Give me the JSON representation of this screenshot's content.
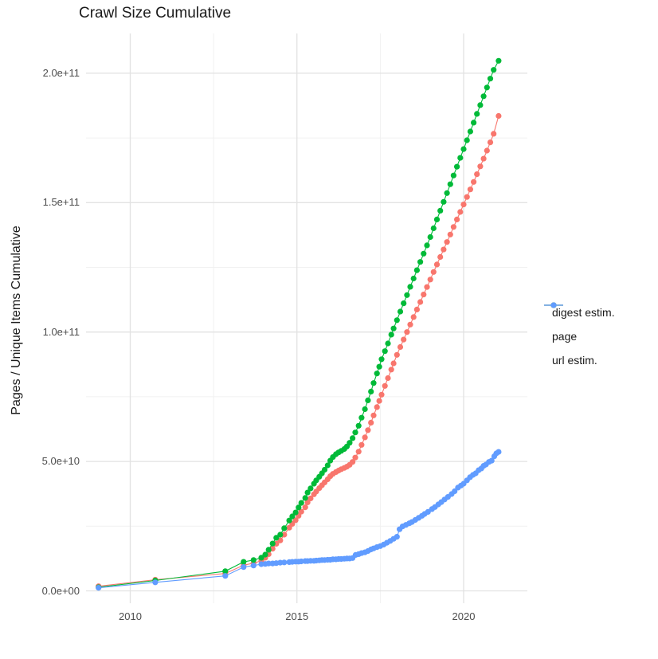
{
  "window": {
    "background_color": "#FFFFFF"
  },
  "chart_data": {
    "type": "scatter",
    "title": "Crawl Size Cumulative",
    "xlabel": "",
    "ylabel": "Pages / Unique Items Cumulative",
    "grid": true,
    "legend_position": "right",
    "value_unit": "items (point values stored in billions, i.e. value x 1e9)",
    "x_axis": {
      "ticks": [
        {
          "label": "2010",
          "value": 2010
        },
        {
          "label": "2015",
          "value": 2015
        },
        {
          "label": "2020",
          "value": 2020
        }
      ],
      "minor_ticks": [
        2012.5,
        2017.5
      ],
      "range": [
        2008.67,
        2021.82
      ]
    },
    "y_axis": {
      "ticks": [
        {
          "label": "0.0e+00",
          "value_billions": 0
        },
        {
          "label": "5.0e+10",
          "value_billions": 50
        },
        {
          "label": "1.0e+11",
          "value_billions": 100
        },
        {
          "label": "1.5e+11",
          "value_billions": 150
        },
        {
          "label": "2.0e+11",
          "value_billions": 200
        }
      ],
      "minor_ticks_billions": [
        25,
        75,
        125,
        175
      ],
      "range_billions": [
        -4.5,
        215.5
      ]
    },
    "style": {
      "grid_major_color": "#E2E2E2",
      "grid_minor_color": "#F1F1F1",
      "tick_label_color": "#4D4D4D",
      "text_color": "#1A1A1A",
      "point_radius": 3.6,
      "line_width": 1.1
    },
    "series": [
      {
        "name": "digest estim.",
        "color": "#F8766D",
        "points_year_billions": [
          [
            2009.05,
            1.8
          ],
          [
            2010.75,
            4.3
          ],
          [
            2012.85,
            6.7
          ],
          [
            2013.4,
            9.9
          ],
          [
            2013.7,
            10.7
          ],
          [
            2013.93,
            11.6
          ],
          [
            2014.05,
            12.8
          ],
          [
            2014.15,
            14.2
          ],
          [
            2014.27,
            16.3
          ],
          [
            2014.38,
            18.2
          ],
          [
            2014.5,
            19.5
          ],
          [
            2014.62,
            21.7
          ],
          [
            2014.77,
            24.4
          ],
          [
            2014.86,
            25.9
          ],
          [
            2014.96,
            27.3
          ],
          [
            2015.05,
            29.0
          ],
          [
            2015.13,
            30.6
          ],
          [
            2015.25,
            32.3
          ],
          [
            2015.32,
            34.2
          ],
          [
            2015.41,
            35.7
          ],
          [
            2015.51,
            37.3
          ],
          [
            2015.58,
            38.4
          ],
          [
            2015.67,
            39.7
          ],
          [
            2015.75,
            40.8
          ],
          [
            2015.83,
            41.9
          ],
          [
            2015.92,
            43.1
          ],
          [
            2016.0,
            44.3
          ],
          [
            2016.08,
            45.2
          ],
          [
            2016.17,
            45.9
          ],
          [
            2016.25,
            46.5
          ],
          [
            2016.33,
            47.0
          ],
          [
            2016.42,
            47.5
          ],
          [
            2016.5,
            48.0
          ],
          [
            2016.58,
            48.7
          ],
          [
            2016.67,
            49.8
          ],
          [
            2016.75,
            51.5
          ],
          [
            2016.85,
            53.8
          ],
          [
            2016.94,
            56.4
          ],
          [
            2017.04,
            59.3
          ],
          [
            2017.13,
            62.1
          ],
          [
            2017.22,
            65.0
          ],
          [
            2017.3,
            67.8
          ],
          [
            2017.4,
            71.0
          ],
          [
            2017.47,
            73.4
          ],
          [
            2017.54,
            75.8
          ],
          [
            2017.64,
            79.2
          ],
          [
            2017.73,
            82.2
          ],
          [
            2017.83,
            85.5
          ],
          [
            2017.9,
            87.9
          ],
          [
            2018.0,
            91.2
          ],
          [
            2018.1,
            94.2
          ],
          [
            2018.2,
            97.1
          ],
          [
            2018.3,
            100.0
          ],
          [
            2018.4,
            102.9
          ],
          [
            2018.5,
            105.8
          ],
          [
            2018.6,
            108.7
          ],
          [
            2018.7,
            111.6
          ],
          [
            2018.8,
            114.5
          ],
          [
            2018.9,
            117.4
          ],
          [
            2019.0,
            120.3
          ],
          [
            2019.1,
            123.2
          ],
          [
            2019.2,
            126.1
          ],
          [
            2019.3,
            129.0
          ],
          [
            2019.4,
            131.9
          ],
          [
            2019.5,
            134.8
          ],
          [
            2019.6,
            137.7
          ],
          [
            2019.7,
            140.6
          ],
          [
            2019.8,
            143.5
          ],
          [
            2019.9,
            146.4
          ],
          [
            2020.0,
            149.3
          ],
          [
            2020.1,
            152.2
          ],
          [
            2020.2,
            155.1
          ],
          [
            2020.3,
            158.0
          ],
          [
            2020.4,
            161.0
          ],
          [
            2020.5,
            164.0
          ],
          [
            2020.6,
            167.0
          ],
          [
            2020.7,
            170.1
          ],
          [
            2020.8,
            173.3
          ],
          [
            2020.9,
            176.6
          ],
          [
            2021.05,
            183.5
          ]
        ]
      },
      {
        "name": "page",
        "color": "#00BA38",
        "points_year_billions": [
          [
            2009.05,
            1.4
          ],
          [
            2010.75,
            4.0
          ],
          [
            2012.85,
            7.6
          ],
          [
            2013.4,
            11.2
          ],
          [
            2013.7,
            11.9
          ],
          [
            2013.93,
            12.8
          ],
          [
            2014.05,
            14.0
          ],
          [
            2014.15,
            15.9
          ],
          [
            2014.27,
            18.3
          ],
          [
            2014.38,
            20.5
          ],
          [
            2014.5,
            21.7
          ],
          [
            2014.62,
            24.2
          ],
          [
            2014.77,
            27.2
          ],
          [
            2014.86,
            28.8
          ],
          [
            2014.96,
            30.3
          ],
          [
            2015.05,
            32.2
          ],
          [
            2015.13,
            34.0
          ],
          [
            2015.25,
            35.9
          ],
          [
            2015.32,
            38.0
          ],
          [
            2015.41,
            39.6
          ],
          [
            2015.51,
            41.4
          ],
          [
            2015.58,
            42.7
          ],
          [
            2015.67,
            44.1
          ],
          [
            2015.75,
            45.4
          ],
          [
            2015.83,
            46.8
          ],
          [
            2015.92,
            48.5
          ],
          [
            2016.0,
            50.3
          ],
          [
            2016.08,
            51.7
          ],
          [
            2016.17,
            52.8
          ],
          [
            2016.25,
            53.5
          ],
          [
            2016.33,
            54.1
          ],
          [
            2016.42,
            54.8
          ],
          [
            2016.5,
            55.8
          ],
          [
            2016.58,
            57.2
          ],
          [
            2016.67,
            59.0
          ],
          [
            2016.75,
            61.2
          ],
          [
            2016.85,
            63.8
          ],
          [
            2016.94,
            66.9
          ],
          [
            2017.04,
            70.2
          ],
          [
            2017.13,
            73.6
          ],
          [
            2017.22,
            77.0
          ],
          [
            2017.3,
            80.3
          ],
          [
            2017.4,
            84.0
          ],
          [
            2017.47,
            86.6
          ],
          [
            2017.54,
            89.5
          ],
          [
            2017.64,
            92.6
          ],
          [
            2017.73,
            95.6
          ],
          [
            2017.83,
            99.0
          ],
          [
            2017.9,
            101.4
          ],
          [
            2018.0,
            104.6
          ],
          [
            2018.1,
            107.9
          ],
          [
            2018.2,
            111.1
          ],
          [
            2018.3,
            114.3
          ],
          [
            2018.4,
            117.5
          ],
          [
            2018.5,
            120.7
          ],
          [
            2018.6,
            123.9
          ],
          [
            2018.7,
            127.1
          ],
          [
            2018.8,
            130.3
          ],
          [
            2018.9,
            133.5
          ],
          [
            2019.0,
            136.7
          ],
          [
            2019.1,
            140.1
          ],
          [
            2019.2,
            143.5
          ],
          [
            2019.3,
            146.9
          ],
          [
            2019.4,
            150.3
          ],
          [
            2019.5,
            153.7
          ],
          [
            2019.6,
            157.1
          ],
          [
            2019.7,
            160.5
          ],
          [
            2019.8,
            163.9
          ],
          [
            2019.9,
            167.3
          ],
          [
            2020.0,
            170.7
          ],
          [
            2020.1,
            174.1
          ],
          [
            2020.2,
            177.5
          ],
          [
            2020.3,
            180.9
          ],
          [
            2020.4,
            184.3
          ],
          [
            2020.5,
            187.7
          ],
          [
            2020.6,
            191.1
          ],
          [
            2020.7,
            194.5
          ],
          [
            2020.8,
            197.9
          ],
          [
            2020.9,
            201.3
          ],
          [
            2021.05,
            204.8
          ]
        ]
      },
      {
        "name": "url estim.",
        "color": "#619CFF",
        "points_year_billions": [
          [
            2009.05,
            1.2
          ],
          [
            2010.75,
            3.3
          ],
          [
            2012.85,
            5.8
          ],
          [
            2013.4,
            9.2
          ],
          [
            2013.7,
            9.8
          ],
          [
            2013.93,
            10.3
          ],
          [
            2014.05,
            10.4
          ],
          [
            2014.15,
            10.6
          ],
          [
            2014.27,
            10.6
          ],
          [
            2014.38,
            10.7
          ],
          [
            2014.5,
            10.9
          ],
          [
            2014.62,
            11.0
          ],
          [
            2014.77,
            11.1
          ],
          [
            2014.86,
            11.2
          ],
          [
            2014.96,
            11.3
          ],
          [
            2015.05,
            11.3
          ],
          [
            2015.13,
            11.4
          ],
          [
            2015.25,
            11.5
          ],
          [
            2015.32,
            11.5
          ],
          [
            2015.41,
            11.6
          ],
          [
            2015.51,
            11.6
          ],
          [
            2015.58,
            11.7
          ],
          [
            2015.67,
            11.8
          ],
          [
            2015.75,
            11.9
          ],
          [
            2015.83,
            11.9
          ],
          [
            2015.92,
            12.0
          ],
          [
            2016.0,
            12.0
          ],
          [
            2016.08,
            12.2
          ],
          [
            2016.17,
            12.2
          ],
          [
            2016.25,
            12.3
          ],
          [
            2016.33,
            12.3
          ],
          [
            2016.42,
            12.4
          ],
          [
            2016.5,
            12.5
          ],
          [
            2016.58,
            12.5
          ],
          [
            2016.67,
            12.7
          ],
          [
            2016.76,
            13.9
          ],
          [
            2016.85,
            14.2
          ],
          [
            2016.94,
            14.6
          ],
          [
            2017.04,
            14.9
          ],
          [
            2017.13,
            15.4
          ],
          [
            2017.22,
            16.0
          ],
          [
            2017.3,
            16.4
          ],
          [
            2017.4,
            16.9
          ],
          [
            2017.5,
            17.3
          ],
          [
            2017.6,
            17.9
          ],
          [
            2017.7,
            18.6
          ],
          [
            2017.8,
            19.3
          ],
          [
            2017.9,
            20.1
          ],
          [
            2018.0,
            20.9
          ],
          [
            2018.08,
            23.8
          ],
          [
            2018.17,
            24.9
          ],
          [
            2018.27,
            25.5
          ],
          [
            2018.37,
            26.1
          ],
          [
            2018.45,
            26.6
          ],
          [
            2018.55,
            27.4
          ],
          [
            2018.65,
            28.2
          ],
          [
            2018.75,
            29.0
          ],
          [
            2018.83,
            29.7
          ],
          [
            2018.93,
            30.5
          ],
          [
            2019.05,
            31.6
          ],
          [
            2019.14,
            32.4
          ],
          [
            2019.24,
            33.4
          ],
          [
            2019.33,
            34.3
          ],
          [
            2019.43,
            35.3
          ],
          [
            2019.53,
            36.3
          ],
          [
            2019.64,
            37.4
          ],
          [
            2019.73,
            38.5
          ],
          [
            2019.83,
            39.9
          ],
          [
            2019.92,
            40.7
          ],
          [
            2020.0,
            41.4
          ],
          [
            2020.1,
            42.7
          ],
          [
            2020.19,
            43.9
          ],
          [
            2020.28,
            44.8
          ],
          [
            2020.36,
            45.4
          ],
          [
            2020.45,
            46.6
          ],
          [
            2020.53,
            47.3
          ],
          [
            2020.6,
            48.3
          ],
          [
            2020.67,
            48.8
          ],
          [
            2020.76,
            49.8
          ],
          [
            2020.84,
            50.3
          ],
          [
            2020.92,
            52.0
          ],
          [
            2020.98,
            53.1
          ],
          [
            2021.05,
            53.7
          ]
        ]
      }
    ]
  }
}
